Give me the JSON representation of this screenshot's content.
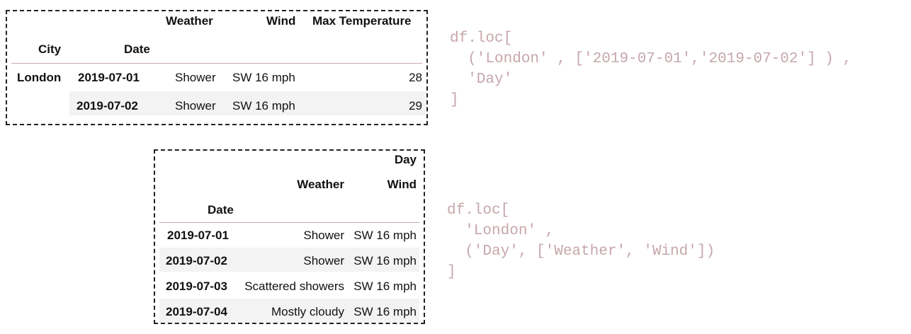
{
  "table1": {
    "headers": {
      "weather": "Weather",
      "wind": "Wind",
      "max_temp": "Max Temperature",
      "city": "City",
      "date": "Date"
    },
    "city_value": "London",
    "rows": [
      {
        "date": "2019-07-01",
        "weather": "Shower",
        "wind": "SW 16 mph",
        "max_temp": "28"
      },
      {
        "date": "2019-07-02",
        "weather": "Shower",
        "wind": "SW 16 mph",
        "max_temp": "29"
      }
    ]
  },
  "code1": "df.loc[\n  ('London' , ['2019-07-01','2019-07-02'] ) ,\n  'Day'\n]",
  "table2": {
    "headers": {
      "group": "Day",
      "weather": "Weather",
      "wind": "Wind",
      "date": "Date"
    },
    "rows": [
      {
        "date": "2019-07-01",
        "weather": "Shower",
        "wind": "SW 16 mph"
      },
      {
        "date": "2019-07-02",
        "weather": "Shower",
        "wind": "SW 16 mph"
      },
      {
        "date": "2019-07-03",
        "weather": "Scattered showers",
        "wind": "SW 16 mph"
      },
      {
        "date": "2019-07-04",
        "weather": "Mostly cloudy",
        "wind": "SW 16 mph"
      }
    ]
  },
  "code2": "df.loc[\n  'London' ,\n  ('Day', ['Weather', 'Wind'])\n]",
  "colors": {
    "code": "#c6a7ab",
    "rule": "#c9a9ae",
    "stripe": "#f3f3f3",
    "border": "#222222"
  }
}
